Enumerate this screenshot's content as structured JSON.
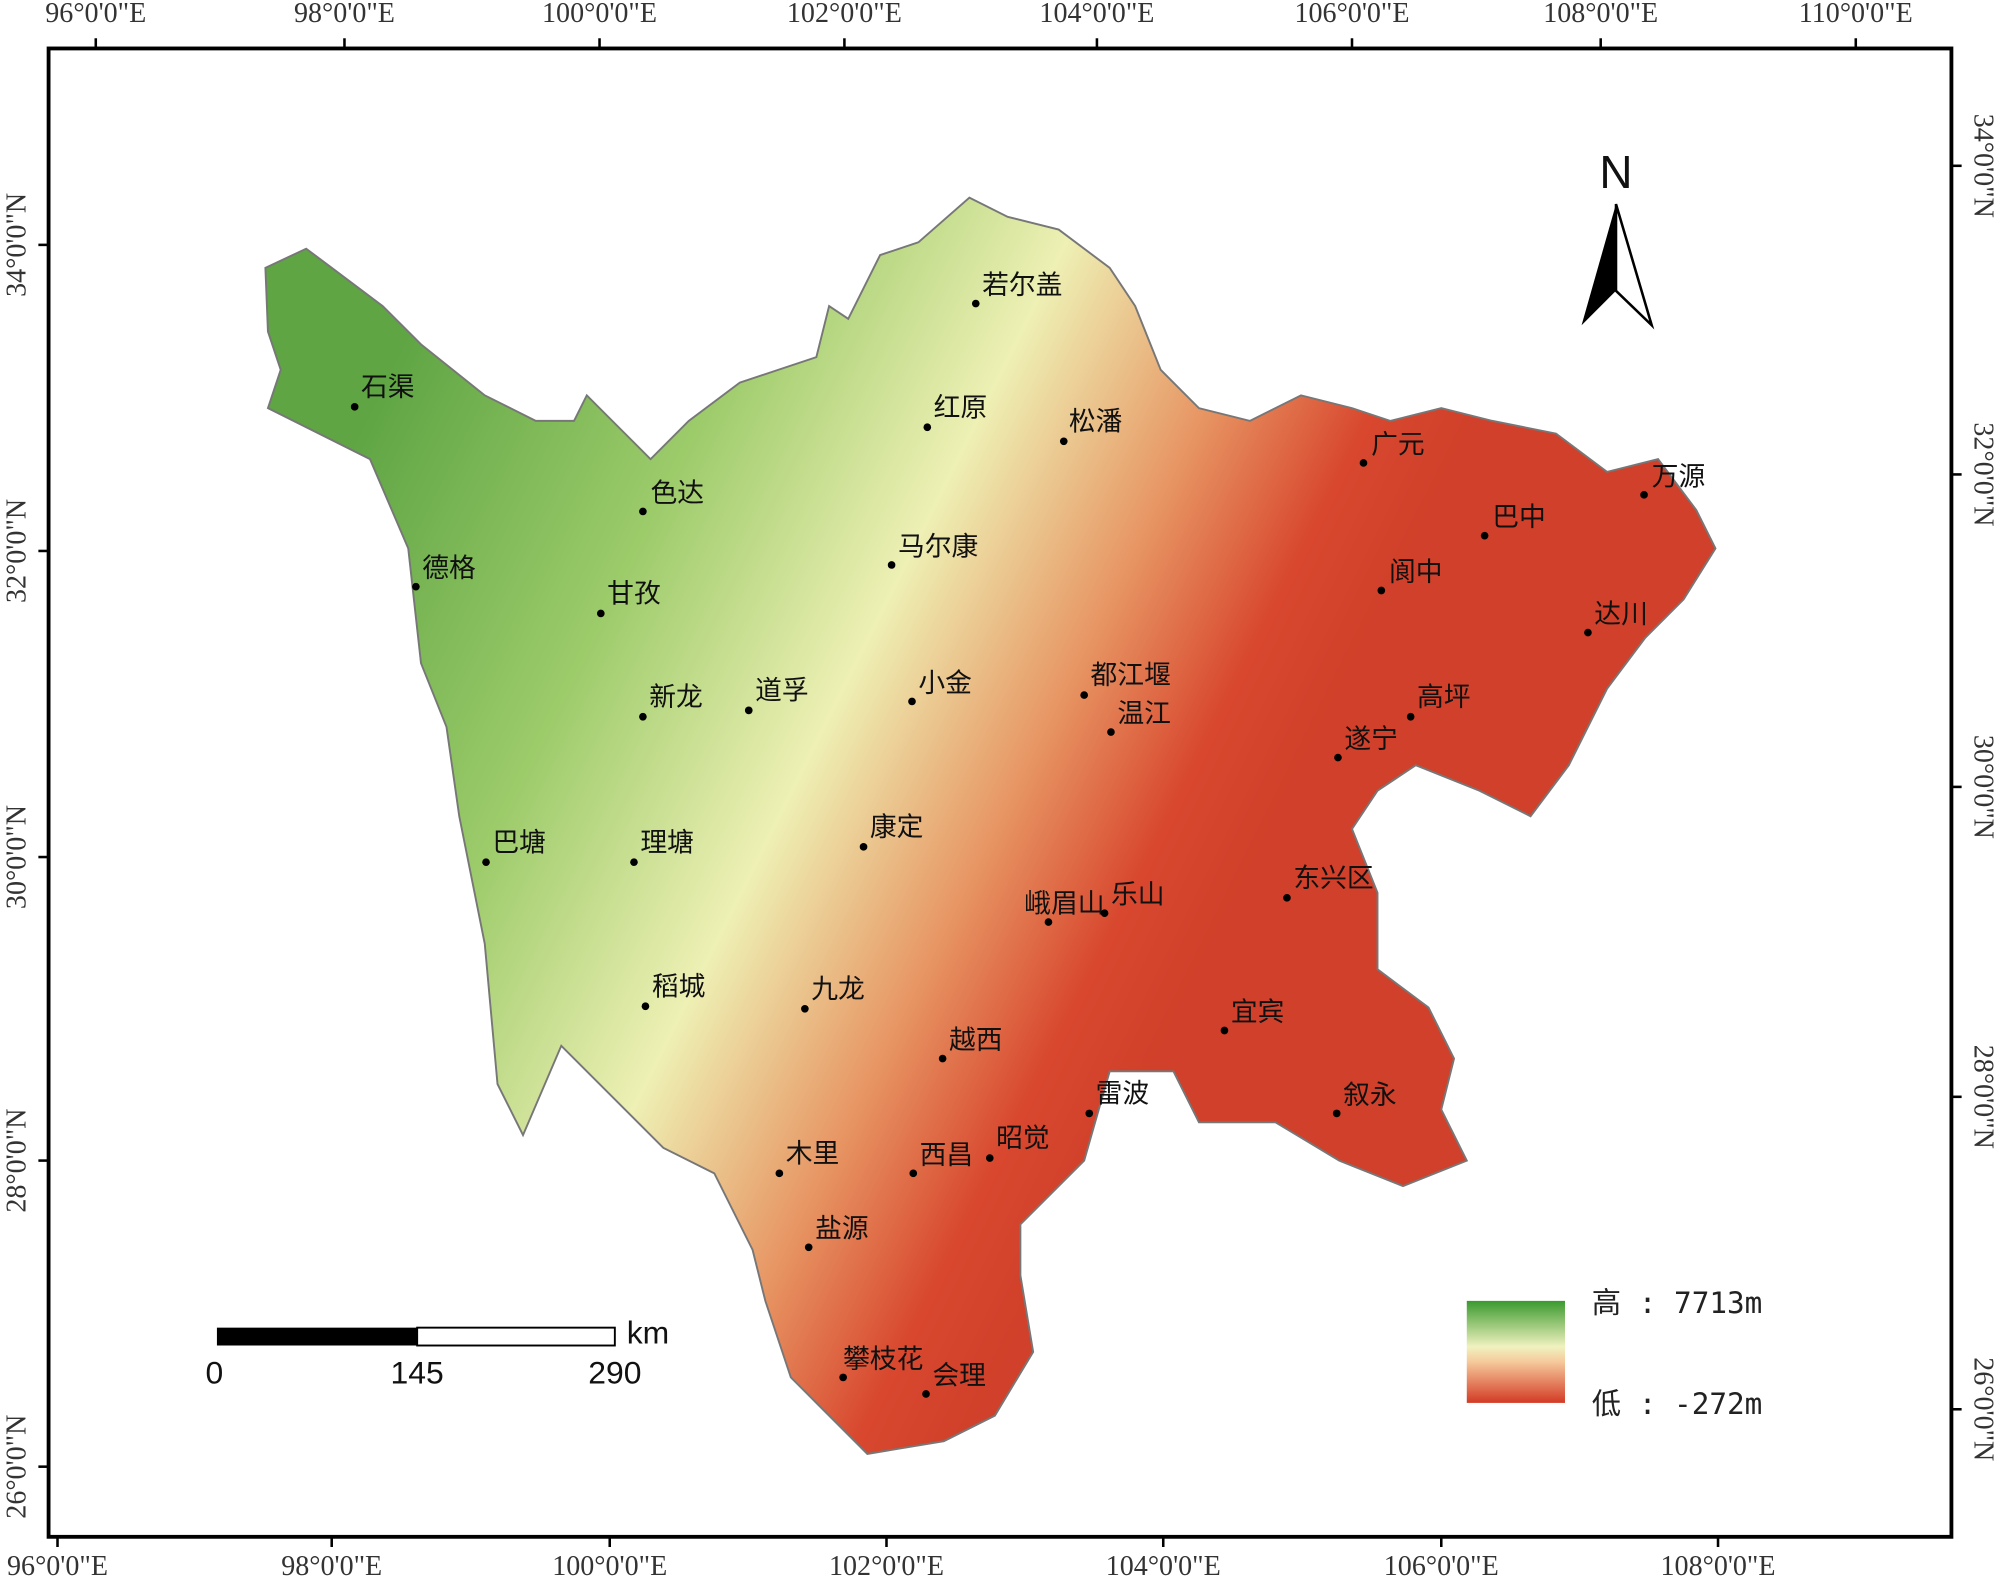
{
  "frame": {
    "top_labels": [
      "96°0'0\"E",
      "98°0'0\"E",
      "100°0'0\"E",
      "102°0'0\"E",
      "104°0'0\"E",
      "106°0'0\"E",
      "108°0'0\"E",
      "110°0'0\"E"
    ],
    "bottom_labels": [
      "96°0'0\"E",
      "98°0'0\"E",
      "100°0'0\"E",
      "102°0'0\"E",
      "104°0'0\"E",
      "106°0'0\"E",
      "108°0'0\"E"
    ],
    "left_labels": [
      "34°0'0\"N",
      "32°0'0\"N",
      "30°0'0\"N",
      "28°0'0\"N",
      "26°0'0\"N"
    ],
    "right_labels": [
      "34°0'0\"N",
      "32°0'0\"N",
      "30°0'0\"N",
      "28°0'0\"N",
      "26°0'0\"N"
    ]
  },
  "north": "N",
  "cities": [
    "石渠",
    "色达",
    "德格",
    "甘孜",
    "若尔盖",
    "红原",
    "松潘",
    "马尔康",
    "广元",
    "万源",
    "巴中",
    "阆中",
    "达川",
    "新龙",
    "道孚",
    "小金",
    "都江堰",
    "温江",
    "高坪",
    "遂宁",
    "巴塘",
    "理塘",
    "康定",
    "峨眉山",
    "乐山",
    "东兴区",
    "稻城",
    "九龙",
    "越西",
    "宜宾",
    "雷波",
    "叙永",
    "木里",
    "西昌",
    "昭觉",
    "盐源",
    "攀枝花",
    "会理"
  ],
  "scale_bar": {
    "labels": [
      0,
      145,
      290
    ],
    "unit": "km"
  },
  "legend": {
    "high": "高 : 7713m",
    "low": "低 : -272m"
  }
}
